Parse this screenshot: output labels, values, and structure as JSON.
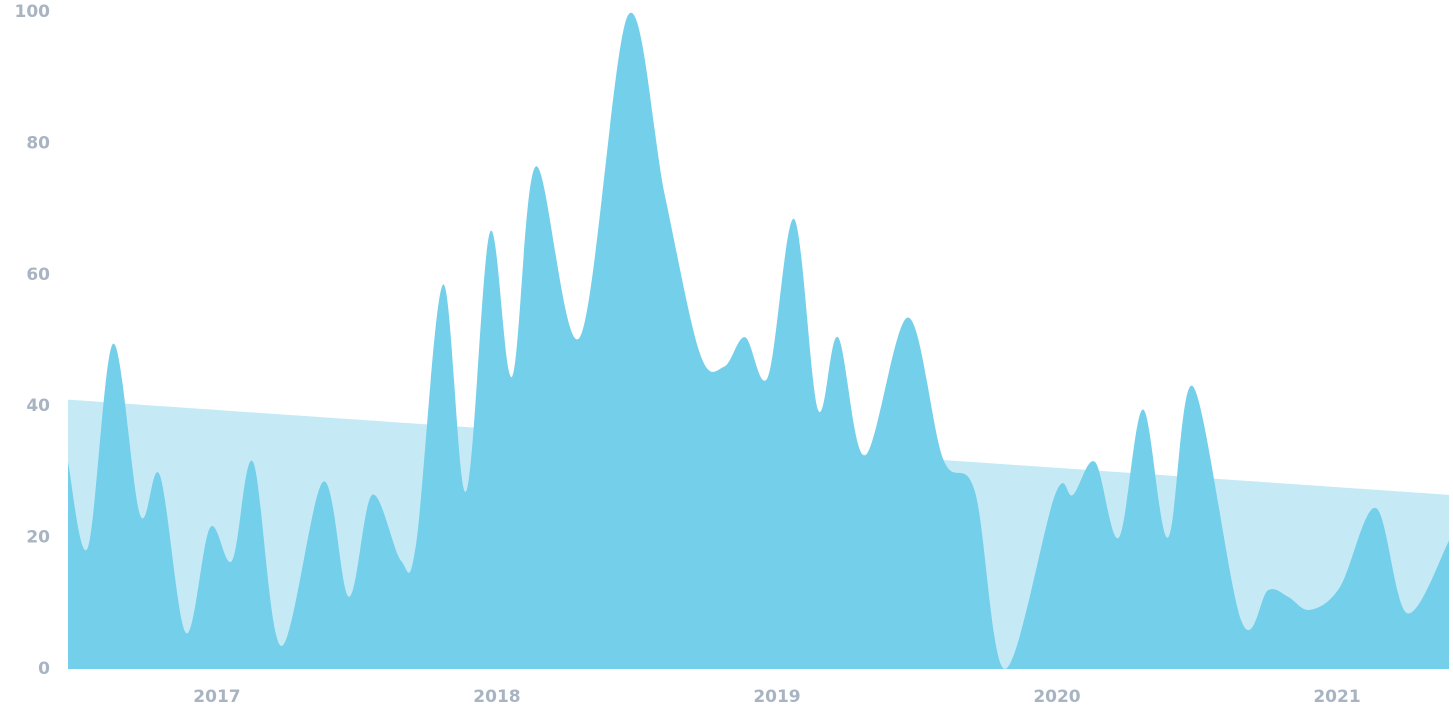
{
  "chart_data": {
    "type": "area",
    "xlim": [
      2016.468,
      2021.4
    ],
    "xticks": [
      2017,
      2018,
      2019,
      2020,
      2021
    ],
    "ylim": [
      0,
      100
    ],
    "yticks": [
      0,
      20,
      40,
      60,
      80,
      100
    ],
    "grid": false,
    "series": [
      {
        "color": "#c5eaf6",
        "x": [
          2016.468,
          2021.4
        ],
        "values": [
          41,
          26.5
        ]
      },
      {
        "color": "#74cfea",
        "x": [
          2016.468,
          2016.539,
          2016.629,
          2016.725,
          2016.796,
          2016.889,
          2016.975,
          2017.054,
          2017.129,
          2017.229,
          2017.379,
          2017.471,
          2017.554,
          2017.657,
          2017.711,
          2017.807,
          2017.889,
          2017.975,
          2018.054,
          2018.139,
          2018.296,
          2018.468,
          2018.6,
          2018.725,
          2018.811,
          2018.886,
          2018.968,
          2019.061,
          2019.146,
          2019.218,
          2019.314,
          2019.468,
          2019.593,
          2019.707,
          2019.814,
          2019.993,
          2020.057,
          2020.136,
          2020.221,
          2020.307,
          2020.396,
          2020.486,
          2020.657,
          2020.754,
          2020.825,
          2020.904,
          2021.011,
          2021.139,
          2021.25,
          2021.4
        ],
        "values": [
          31.5,
          18.5,
          49.5,
          23.5,
          29.5,
          5.5,
          21.5,
          16.5,
          31.5,
          3.5,
          28.5,
          11,
          26.5,
          16.5,
          19,
          58.5,
          27,
          66.5,
          44.5,
          76.5,
          50.5,
          99.5,
          72,
          48,
          46,
          50.5,
          44.5,
          68.5,
          39.5,
          50.5,
          32.5,
          53.5,
          32,
          27,
          0,
          26.5,
          26.5,
          31.5,
          20,
          39.5,
          20,
          43,
          7.5,
          12,
          11,
          9,
          12.5,
          24.5,
          8.5,
          19.5
        ]
      }
    ]
  }
}
